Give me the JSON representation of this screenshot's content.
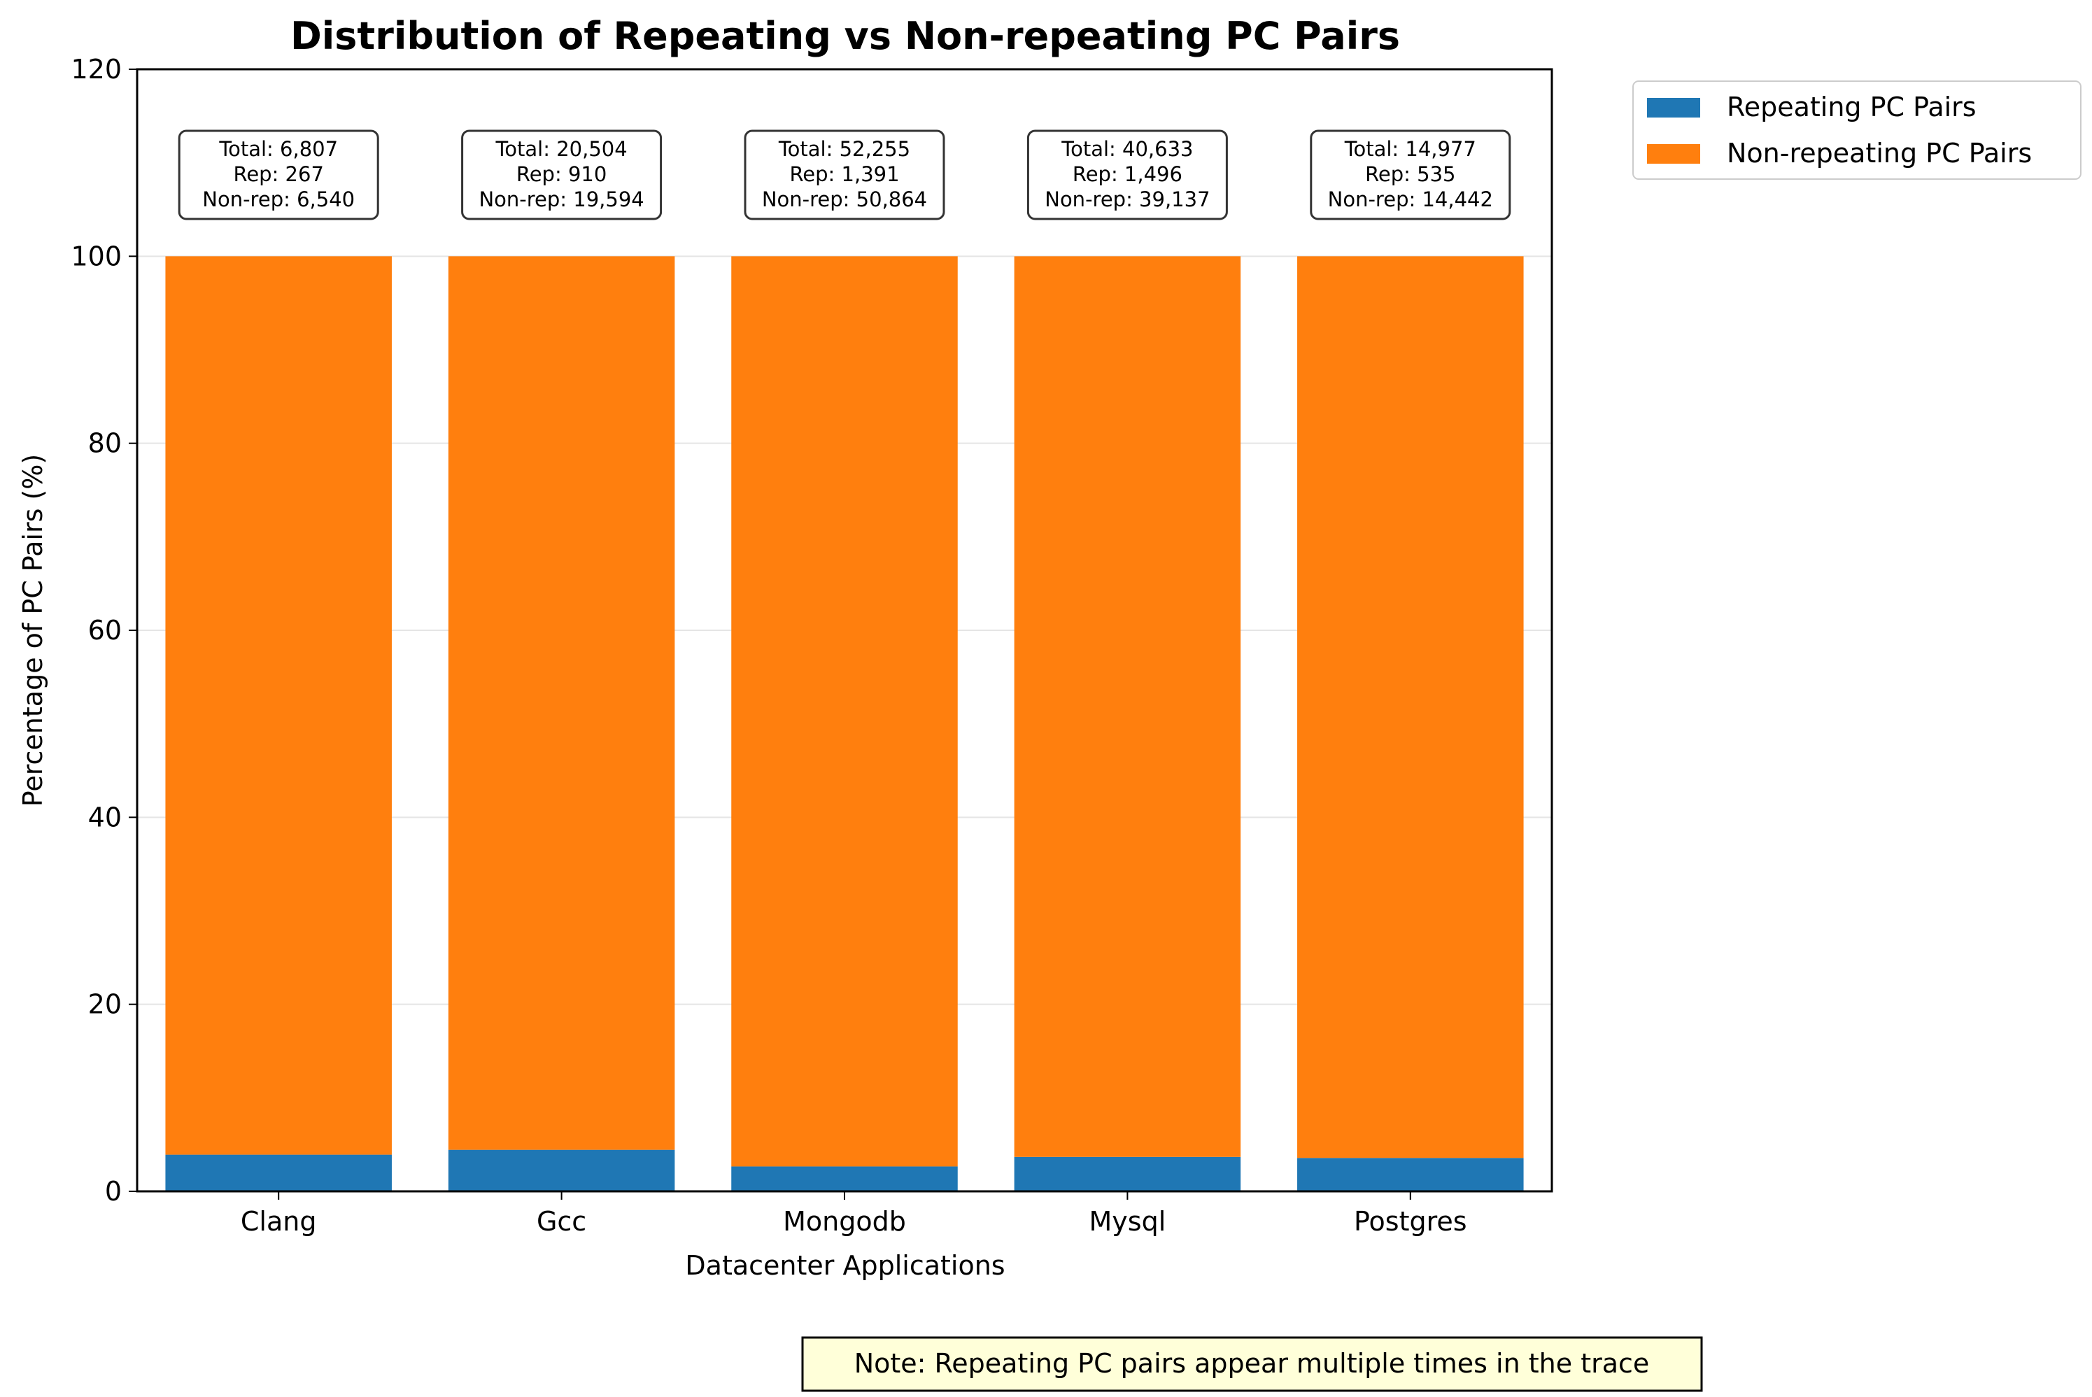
{
  "colors": {
    "repeating": "#1f77b4",
    "non_repeating": "#ff7f0e",
    "grid": "#e5e5e5",
    "note_bg": "#ffffd9"
  },
  "chart_data": {
    "type": "bar",
    "stacked": true,
    "title": "Distribution of Repeating vs Non-repeating PC Pairs",
    "xlabel": "Datacenter Applications",
    "ylabel": "Percentage of PC Pairs (%)",
    "ylim": [
      0,
      120
    ],
    "yticks": [
      0,
      20,
      40,
      60,
      80,
      100,
      120
    ],
    "grid": true,
    "legend_position": "outside-top-right",
    "categories": [
      "Clang",
      "Gcc",
      "Mongodb",
      "Mysql",
      "Postgres"
    ],
    "series": [
      {
        "name": "Repeating PC Pairs",
        "values": [
          3.92,
          4.44,
          2.66,
          3.68,
          3.57
        ]
      },
      {
        "name": "Non-repeating PC Pairs",
        "values": [
          96.08,
          95.56,
          97.34,
          96.32,
          96.43
        ]
      }
    ],
    "annotations": [
      {
        "total": "Total: 6,807",
        "rep": "Rep: 267",
        "nonrep": "Non-rep: 6,540"
      },
      {
        "total": "Total: 20,504",
        "rep": "Rep: 910",
        "nonrep": "Non-rep: 19,594"
      },
      {
        "total": "Total: 52,255",
        "rep": "Rep: 1,391",
        "nonrep": "Non-rep: 50,864"
      },
      {
        "total": "Total: 40,633",
        "rep": "Rep: 1,496",
        "nonrep": "Non-rep: 39,137"
      },
      {
        "total": "Total: 14,977",
        "rep": "Rep: 535",
        "nonrep": "Non-rep: 14,442"
      }
    ],
    "note": "Note: Repeating PC pairs appear multiple times in the trace"
  }
}
